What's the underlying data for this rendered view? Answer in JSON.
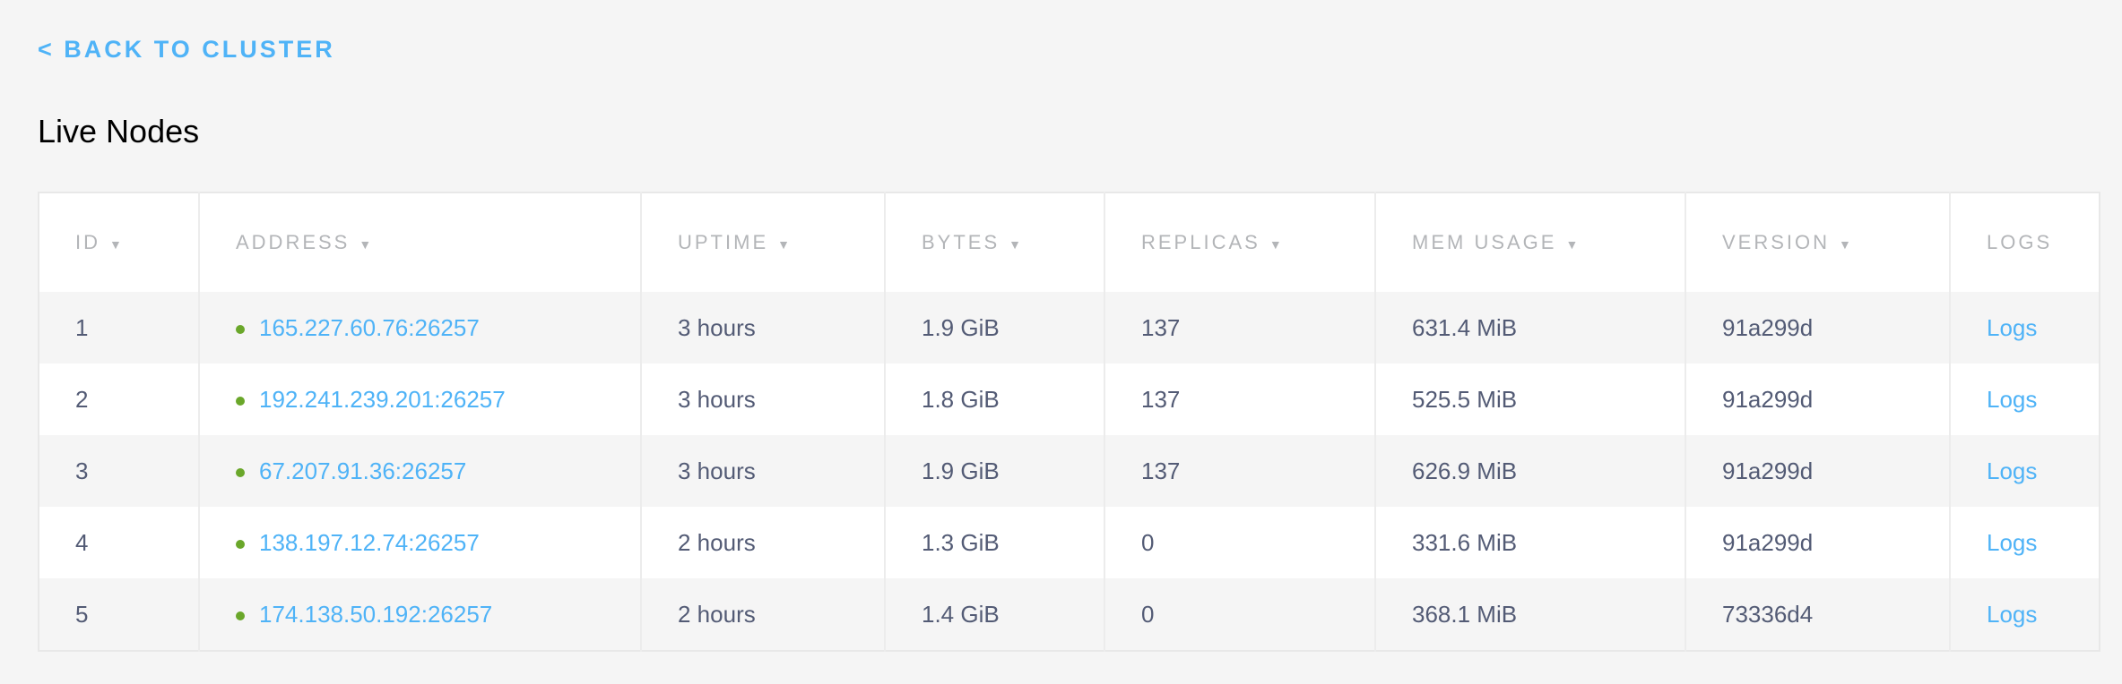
{
  "back_link": "< BACK TO CLUSTER",
  "page_title": "Live Nodes",
  "colors": {
    "link": "#4fb3f7",
    "status_live": "#6aa72a",
    "text": "#535b75",
    "header": "#b3b5b8"
  },
  "table": {
    "columns": [
      {
        "label": "ID",
        "sortable": true
      },
      {
        "label": "ADDRESS",
        "sortable": true
      },
      {
        "label": "UPTIME",
        "sortable": true
      },
      {
        "label": "BYTES",
        "sortable": true
      },
      {
        "label": "REPLICAS",
        "sortable": true
      },
      {
        "label": "MEM USAGE",
        "sortable": true
      },
      {
        "label": "VERSION",
        "sortable": true
      },
      {
        "label": "LOGS",
        "sortable": false
      }
    ],
    "sort_icon": "▼",
    "rows": [
      {
        "id": "1",
        "address": "165.227.60.76:26257",
        "uptime": "3 hours",
        "bytes": "1.9 GiB",
        "replicas": "137",
        "mem": "631.4 MiB",
        "version": "91a299d",
        "logs": "Logs"
      },
      {
        "id": "2",
        "address": "192.241.239.201:26257",
        "uptime": "3 hours",
        "bytes": "1.8 GiB",
        "replicas": "137",
        "mem": "525.5 MiB",
        "version": "91a299d",
        "logs": "Logs"
      },
      {
        "id": "3",
        "address": "67.207.91.36:26257",
        "uptime": "3 hours",
        "bytes": "1.9 GiB",
        "replicas": "137",
        "mem": "626.9 MiB",
        "version": "91a299d",
        "logs": "Logs"
      },
      {
        "id": "4",
        "address": "138.197.12.74:26257",
        "uptime": "2 hours",
        "bytes": "1.3 GiB",
        "replicas": "0",
        "mem": "331.6 MiB",
        "version": "91a299d",
        "logs": "Logs"
      },
      {
        "id": "5",
        "address": "174.138.50.192:26257",
        "uptime": "2 hours",
        "bytes": "1.4 GiB",
        "replicas": "0",
        "mem": "368.1 MiB",
        "version": "73336d4",
        "logs": "Logs"
      }
    ]
  }
}
